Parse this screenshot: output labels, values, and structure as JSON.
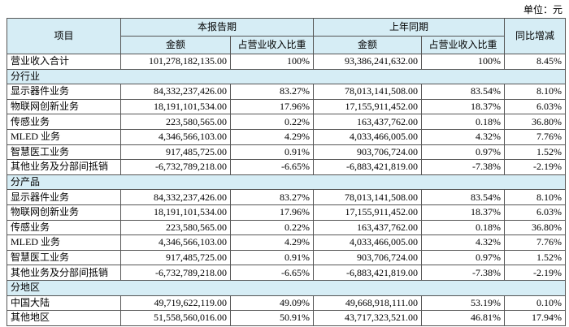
{
  "header": {
    "unit": "单位：元"
  },
  "table": {
    "head": {
      "item": "项目",
      "current": "本报告期",
      "prior": "上年同期",
      "change": "同比增减",
      "sub": [
        "金额",
        "占营业收入比重",
        "金额",
        "占营业收入比重"
      ]
    },
    "total": [
      "营业收入合计",
      "101,278,182,135.00",
      "100%",
      "93,386,241,632.00",
      "100%",
      "8.45%"
    ],
    "sections": [
      {
        "title": "分行业",
        "rows": [
          [
            "显示器件业务",
            "84,332,237,426.00",
            "83.27%",
            "78,013,141,508.00",
            "83.54%",
            "8.10%"
          ],
          [
            "物联网创新业务",
            "18,191,101,534.00",
            "17.96%",
            "17,155,911,452.00",
            "18.37%",
            "6.03%"
          ],
          [
            "传感业务",
            "223,580,565.00",
            "0.22%",
            "163,437,762.00",
            "0.18%",
            "36.80%"
          ],
          [
            "MLED 业务",
            "4,346,566,103.00",
            "4.29%",
            "4,033,466,005.00",
            "4.32%",
            "7.76%"
          ],
          [
            "智慧医工业务",
            "917,485,725.00",
            "0.91%",
            "903,706,724.00",
            "0.97%",
            "1.52%"
          ],
          [
            "其他业务及分部间抵销",
            "-6,732,789,218.00",
            "-6.65%",
            "-6,883,421,819.00",
            "-7.38%",
            "-2.19%"
          ]
        ]
      },
      {
        "title": "分产品",
        "rows": [
          [
            "显示器件业务",
            "84,332,237,426.00",
            "83.27%",
            "78,013,141,508.00",
            "83.54%",
            "8.10%"
          ],
          [
            "物联网创新业务",
            "18,191,101,534.00",
            "17.96%",
            "17,155,911,452.00",
            "18.37%",
            "6.03%"
          ],
          [
            "传感业务",
            "223,580,565.00",
            "0.22%",
            "163,437,762.00",
            "0.18%",
            "36.80%"
          ],
          [
            "MLED 业务",
            "4,346,566,103.00",
            "4.29%",
            "4,033,466,005.00",
            "4.32%",
            "7.76%"
          ],
          [
            "智慧医工业务",
            "917,485,725.00",
            "0.91%",
            "903,706,724.00",
            "0.97%",
            "1.52%"
          ],
          [
            "其他业务及分部间抵销",
            "-6,732,789,218.00",
            "-6.65%",
            "-6,883,421,819.00",
            "-7.38%",
            "-2.19%"
          ]
        ]
      },
      {
        "title": "分地区",
        "rows": [
          [
            "中国大陆",
            "49,719,622,119.00",
            "49.09%",
            "49,668,918,111.00",
            "53.19%",
            "0.10%"
          ],
          [
            "其他地区",
            "51,558,560,016.00",
            "50.91%",
            "43,717,323,521.00",
            "46.81%",
            "17.94%"
          ]
        ]
      }
    ]
  }
}
